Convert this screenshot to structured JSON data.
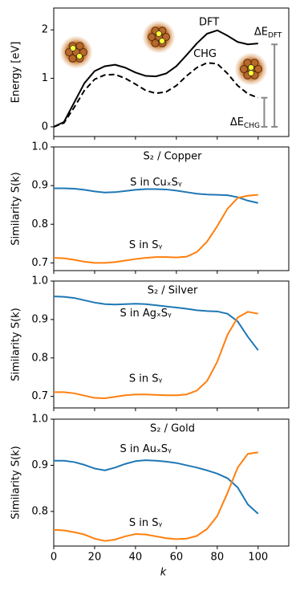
{
  "chart_data": [
    {
      "type": "line",
      "ylabel": "Energy [eV]",
      "ylim": [
        -0.2,
        2.45
      ],
      "yticks": [
        0,
        1,
        2
      ],
      "xlim": [
        0,
        115
      ],
      "xticks": [
        0,
        20,
        40,
        60,
        80,
        100
      ],
      "x": [
        0,
        5,
        10,
        15,
        20,
        25,
        30,
        35,
        40,
        45,
        50,
        55,
        60,
        65,
        70,
        75,
        80,
        85,
        90,
        95,
        100
      ],
      "series": [
        {
          "name": "DFT",
          "color": "#000000",
          "dash": false,
          "values": [
            0,
            0.1,
            0.5,
            0.9,
            1.15,
            1.25,
            1.28,
            1.22,
            1.12,
            1.05,
            1.04,
            1.1,
            1.25,
            1.48,
            1.72,
            1.92,
            1.99,
            1.88,
            1.75,
            1.7,
            1.72
          ]
        },
        {
          "name": "CHG",
          "color": "#000000",
          "dash": true,
          "values": [
            0,
            0.08,
            0.4,
            0.75,
            0.98,
            1.07,
            1.08,
            1.0,
            0.88,
            0.75,
            0.69,
            0.72,
            0.85,
            1.05,
            1.22,
            1.32,
            1.3,
            1.1,
            0.85,
            0.68,
            0.6
          ]
        }
      ],
      "intervals": [
        {
          "label": "ΔE",
          "sub": "DFT",
          "x": 108,
          "low": 0,
          "high": 1.7,
          "color": "#888888"
        },
        {
          "label": "ΔE",
          "sub": "CHG",
          "x": 103,
          "low": 0,
          "high": 0.6,
          "color": "#888888"
        }
      ]
    },
    {
      "type": "line",
      "title": "S₂ / Copper",
      "ylabel": "Similarity S(k)",
      "ylim": [
        0.68,
        1.0
      ],
      "yticks": [
        0.7,
        0.8,
        0.9,
        {
          "value": 1.0,
          "label": "1.0"
        }
      ],
      "xlim": [
        0,
        115
      ],
      "xticks": [
        0,
        20,
        40,
        60,
        80,
        100
      ],
      "x": [
        0,
        5,
        10,
        15,
        20,
        25,
        30,
        35,
        40,
        45,
        50,
        55,
        60,
        65,
        70,
        75,
        80,
        85,
        90,
        95,
        100
      ],
      "series": [
        {
          "name": "S in CuₓSᵧ",
          "color": "#1f77b4",
          "values": [
            0.893,
            0.893,
            0.892,
            0.889,
            0.885,
            0.882,
            0.883,
            0.886,
            0.889,
            0.891,
            0.891,
            0.89,
            0.887,
            0.883,
            0.879,
            0.877,
            0.876,
            0.875,
            0.87,
            0.861,
            0.855
          ]
        },
        {
          "name": "S in Sᵧ",
          "color": "#ff7f0e",
          "values": [
            0.713,
            0.712,
            0.708,
            0.703,
            0.7,
            0.7,
            0.702,
            0.706,
            0.71,
            0.713,
            0.715,
            0.715,
            0.714,
            0.716,
            0.728,
            0.755,
            0.795,
            0.84,
            0.868,
            0.874,
            0.876
          ]
        }
      ]
    },
    {
      "type": "line",
      "title": "S₂ / Silver",
      "ylabel": "Similarity S(k)",
      "ylim": [
        0.67,
        1.0
      ],
      "yticks": [
        0.7,
        0.8,
        0.9,
        {
          "value": 1.0,
          "label": "1.0"
        }
      ],
      "xlim": [
        0,
        115
      ],
      "xticks": [
        0,
        20,
        40,
        60,
        80,
        100
      ],
      "x": [
        0,
        5,
        10,
        15,
        20,
        25,
        30,
        35,
        40,
        45,
        50,
        55,
        60,
        65,
        70,
        75,
        80,
        85,
        90,
        95,
        100
      ],
      "series": [
        {
          "name": "S in AgₓSᵧ",
          "color": "#1f77b4",
          "values": [
            0.96,
            0.959,
            0.956,
            0.95,
            0.944,
            0.94,
            0.939,
            0.94,
            0.941,
            0.94,
            0.937,
            0.934,
            0.931,
            0.928,
            0.924,
            0.922,
            0.921,
            0.915,
            0.895,
            0.855,
            0.82
          ]
        },
        {
          "name": "S in Sᵧ",
          "color": "#ff7f0e",
          "values": [
            0.711,
            0.711,
            0.708,
            0.702,
            0.696,
            0.695,
            0.699,
            0.703,
            0.705,
            0.705,
            0.704,
            0.703,
            0.703,
            0.705,
            0.715,
            0.74,
            0.79,
            0.86,
            0.905,
            0.92,
            0.915
          ]
        }
      ]
    },
    {
      "type": "line",
      "title": "S₂ / Gold",
      "ylabel": "Similarity S(k)",
      "xlabel": "k",
      "ylim": [
        0.725,
        1.0
      ],
      "yticks": [
        0.8,
        0.9,
        {
          "value": 1.0,
          "label": "1.0"
        }
      ],
      "xlim": [
        0,
        115
      ],
      "xticks": [
        0,
        20,
        40,
        60,
        80,
        100
      ],
      "x": [
        0,
        5,
        10,
        15,
        20,
        25,
        30,
        35,
        40,
        45,
        50,
        55,
        60,
        65,
        70,
        75,
        80,
        85,
        90,
        95,
        100
      ],
      "series": [
        {
          "name": "S in AuₓSᵧ",
          "color": "#1f77b4",
          "values": [
            0.91,
            0.91,
            0.907,
            0.901,
            0.893,
            0.889,
            0.895,
            0.903,
            0.909,
            0.911,
            0.91,
            0.908,
            0.905,
            0.9,
            0.895,
            0.889,
            0.882,
            0.872,
            0.852,
            0.815,
            0.795
          ]
        },
        {
          "name": "S in Sᵧ",
          "color": "#ff7f0e",
          "values": [
            0.76,
            0.759,
            0.755,
            0.75,
            0.741,
            0.736,
            0.739,
            0.746,
            0.751,
            0.75,
            0.746,
            0.742,
            0.74,
            0.741,
            0.747,
            0.762,
            0.79,
            0.84,
            0.895,
            0.925,
            0.928
          ]
        }
      ]
    }
  ]
}
